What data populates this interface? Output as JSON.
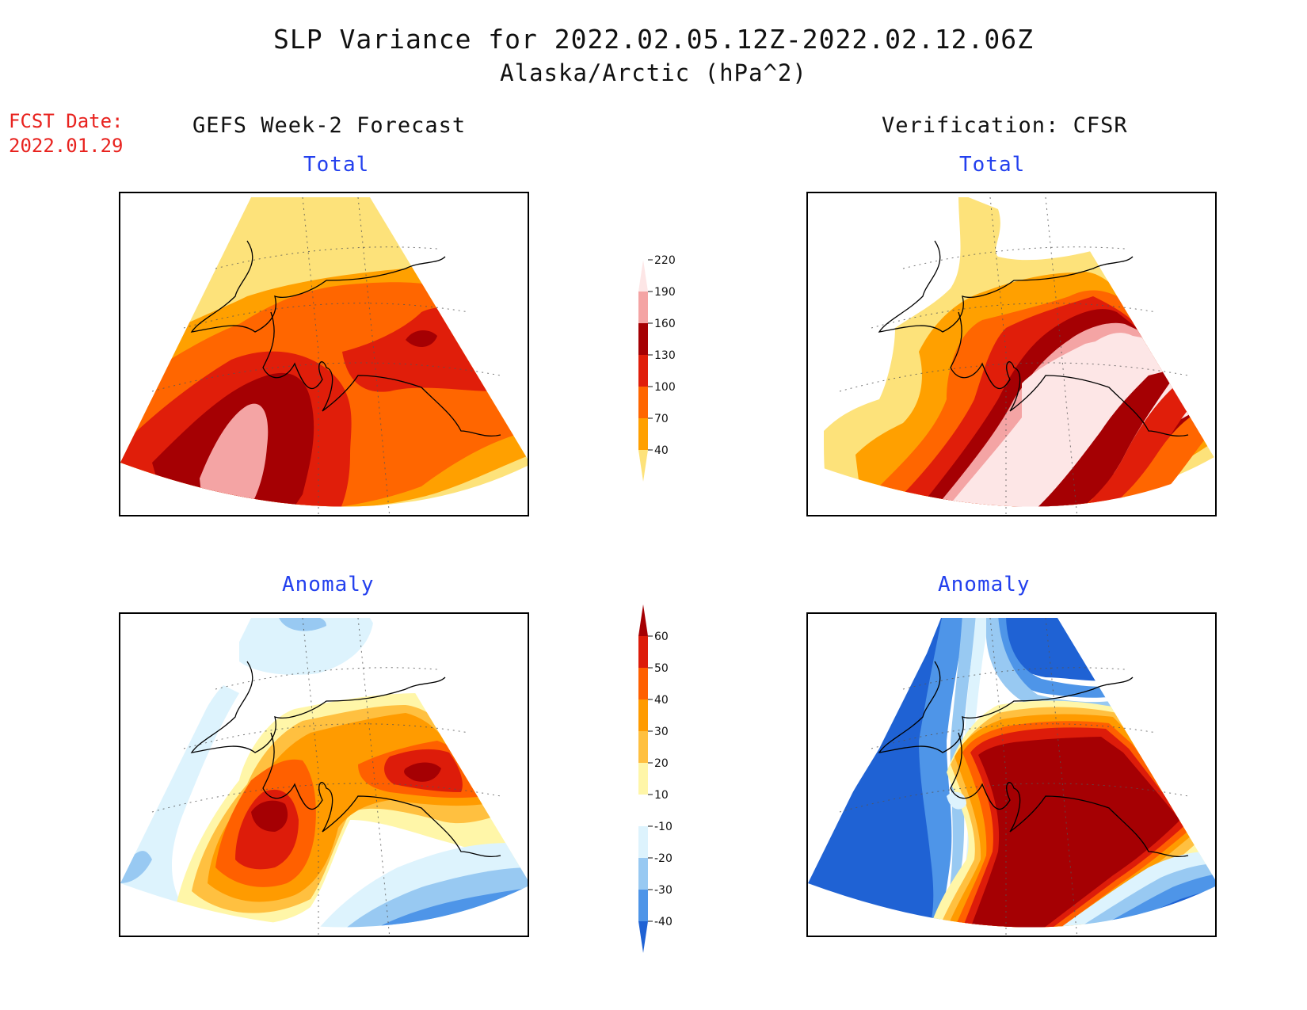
{
  "title": "SLP Variance for 2022.02.05.12Z-2022.02.12.06Z",
  "subtitle": "Alaska/Arctic (hPa^2)",
  "fcst_date": {
    "label": "FCST Date:",
    "value": "2022.01.29"
  },
  "columns": {
    "left": "GEFS Week-2 Forecast",
    "right": "Verification: CFSR"
  },
  "panels": {
    "tl": {
      "title": "Total"
    },
    "tr": {
      "title": "Total"
    },
    "bl": {
      "title": "Anomaly"
    },
    "br": {
      "title": "Anomaly"
    }
  },
  "colorbars": {
    "total": {
      "ticks": [
        "40",
        "70",
        "100",
        "130",
        "160",
        "190",
        "220"
      ],
      "colors": [
        "#fde27a",
        "#ffa000",
        "#ff6600",
        "#e01e0a",
        "#a50003",
        "#f4a4a4",
        "#fde6e6"
      ]
    },
    "anomaly": {
      "ticks": [
        "-40",
        "-30",
        "-20",
        "-10",
        "10",
        "20",
        "30",
        "40",
        "50",
        "60"
      ],
      "colors": [
        "#1f62d4",
        "#4e95e8",
        "#98c9f2",
        "#ddf3fd",
        "#ffffff",
        "#fff6a8",
        "#ffc040",
        "#ff9b00",
        "#ff6000",
        "#dd1c0a",
        "#a50003"
      ]
    }
  }
}
